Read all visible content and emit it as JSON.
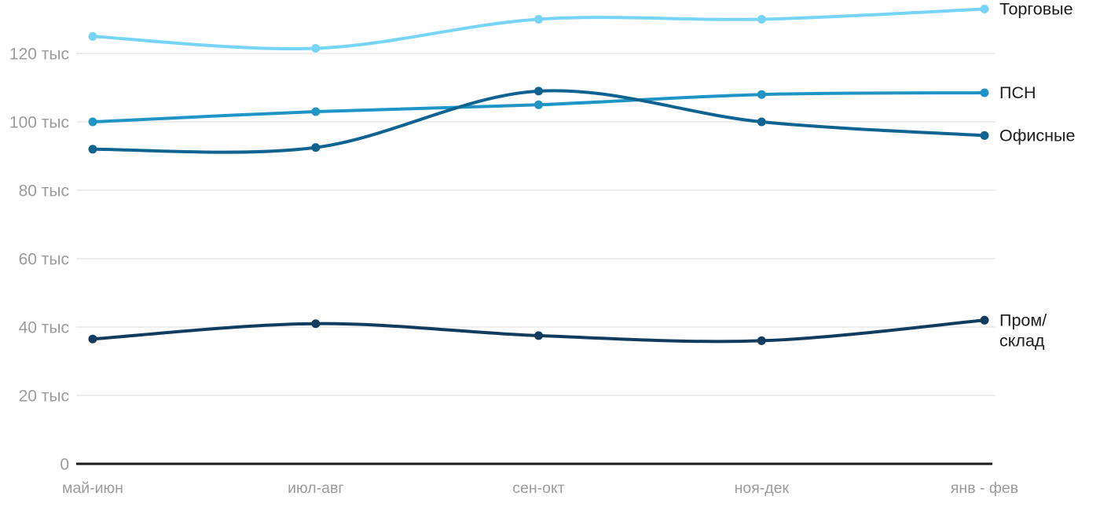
{
  "chart_data": {
    "type": "line",
    "value_unit_label": "тыс",
    "categories": [
      "май-июн",
      "июл-авг",
      "сен-окт",
      "ноя-дек",
      "янв - фев"
    ],
    "series": [
      {
        "name": "Торговые",
        "slug": "torgovye",
        "label_lines": [
          "Торговые"
        ],
        "color": "#76d4f6",
        "values_thousands": [
          125,
          121.5,
          130,
          130,
          133
        ]
      },
      {
        "name": "ПСН",
        "slug": "psn",
        "label_lines": [
          "ПСН"
        ],
        "color": "#2095c5",
        "values_thousands": [
          100,
          103,
          105,
          108,
          108.5
        ]
      },
      {
        "name": "Офисные",
        "slug": "ofisnye",
        "label_lines": [
          "Офисные"
        ],
        "color": "#0e6390",
        "values_thousands": [
          92,
          92.5,
          109,
          100,
          96
        ]
      },
      {
        "name": "Пром/склад",
        "slug": "prom-sklad",
        "label_lines": [
          "Пром/",
          "склад"
        ],
        "color": "#123c5e",
        "values_thousands": [
          36.5,
          41,
          37.5,
          36,
          42
        ]
      }
    ],
    "yticks": [
      {
        "value": 0,
        "label": "0"
      },
      {
        "value": 20,
        "label": "20 тыс"
      },
      {
        "value": 40,
        "label": "40 тыс"
      },
      {
        "value": 60,
        "label": "60 тыс"
      },
      {
        "value": 80,
        "label": "80 тыс"
      },
      {
        "value": 100,
        "label": "100 тыс"
      },
      {
        "value": 120,
        "label": "120 тыс"
      }
    ],
    "ylim": [
      0,
      135
    ],
    "grid": true,
    "legend_position": "right-of-line-ends",
    "xlabel": "",
    "ylabel": ""
  },
  "colors": {
    "background": "#ffffff",
    "gridline": "#e8e8e8",
    "axis_line": "#1a1a1a",
    "tick_text": "#9c9c9c",
    "legend_text": "#1c1c1c"
  }
}
